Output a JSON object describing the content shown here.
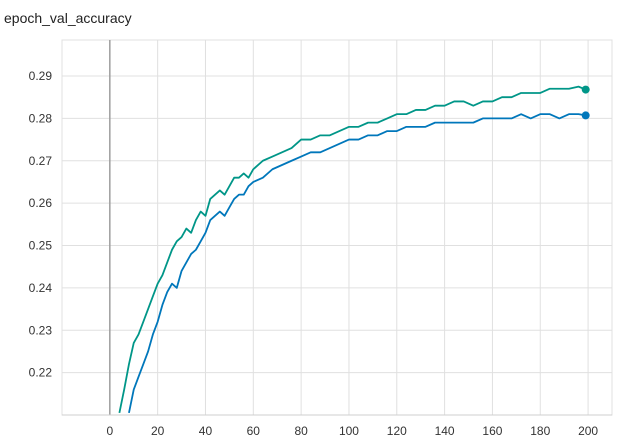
{
  "chart_data": {
    "type": "line",
    "title": "epoch_val_accuracy",
    "xlabel": "",
    "ylabel": "",
    "xlim": [
      -20,
      210
    ],
    "ylim": [
      0.21,
      0.2985
    ],
    "xticks": [
      0,
      20,
      40,
      60,
      80,
      100,
      120,
      140,
      160,
      180,
      200
    ],
    "yticks": [
      0.22,
      0.23,
      0.24,
      0.25,
      0.26,
      0.27,
      0.28,
      0.29
    ],
    "xtick_labels": [
      "0",
      "20",
      "40",
      "60",
      "80",
      "100",
      "120",
      "140",
      "160",
      "180",
      "200"
    ],
    "ytick_labels": [
      "0.22",
      "0.23",
      "0.24",
      "0.25",
      "0.26",
      "0.27",
      "0.28",
      "0.29"
    ],
    "grid": true,
    "series": [
      {
        "color": "#009688",
        "x": [
          4,
          6,
          8,
          10,
          12,
          14,
          16,
          18,
          20,
          22,
          24,
          26,
          28,
          30,
          32,
          34,
          36,
          38,
          40,
          42,
          44,
          46,
          48,
          50,
          52,
          54,
          56,
          58,
          60,
          64,
          68,
          72,
          76,
          80,
          84,
          88,
          92,
          96,
          100,
          104,
          108,
          112,
          116,
          120,
          124,
          128,
          132,
          136,
          140,
          144,
          148,
          152,
          156,
          160,
          164,
          168,
          172,
          176,
          180,
          184,
          188,
          192,
          196,
          199
        ],
        "values": [
          0.2105,
          0.216,
          0.222,
          0.227,
          0.229,
          0.232,
          0.235,
          0.238,
          0.241,
          0.243,
          0.246,
          0.249,
          0.251,
          0.252,
          0.254,
          0.253,
          0.256,
          0.258,
          0.257,
          0.261,
          0.262,
          0.263,
          0.262,
          0.264,
          0.266,
          0.266,
          0.267,
          0.266,
          0.268,
          0.27,
          0.271,
          0.272,
          0.273,
          0.275,
          0.275,
          0.276,
          0.276,
          0.277,
          0.278,
          0.278,
          0.279,
          0.279,
          0.28,
          0.281,
          0.281,
          0.282,
          0.282,
          0.283,
          0.283,
          0.284,
          0.284,
          0.283,
          0.284,
          0.284,
          0.285,
          0.285,
          0.286,
          0.286,
          0.286,
          0.287,
          0.287,
          0.287,
          0.2875,
          0.2868
        ]
      },
      {
        "color": "#0077bb",
        "x": [
          8,
          10,
          12,
          14,
          16,
          18,
          20,
          22,
          24,
          26,
          28,
          30,
          32,
          34,
          36,
          38,
          40,
          42,
          44,
          46,
          48,
          50,
          52,
          54,
          56,
          58,
          60,
          64,
          68,
          72,
          76,
          80,
          84,
          88,
          92,
          96,
          100,
          104,
          108,
          112,
          116,
          120,
          124,
          128,
          132,
          136,
          140,
          144,
          148,
          152,
          156,
          160,
          164,
          168,
          172,
          176,
          180,
          184,
          188,
          192,
          196,
          199
        ],
        "values": [
          0.2105,
          0.216,
          0.219,
          0.222,
          0.225,
          0.229,
          0.232,
          0.236,
          0.239,
          0.241,
          0.24,
          0.244,
          0.246,
          0.248,
          0.249,
          0.251,
          0.253,
          0.256,
          0.257,
          0.258,
          0.257,
          0.259,
          0.261,
          0.262,
          0.262,
          0.264,
          0.265,
          0.266,
          0.268,
          0.269,
          0.27,
          0.271,
          0.272,
          0.272,
          0.273,
          0.274,
          0.275,
          0.275,
          0.276,
          0.276,
          0.277,
          0.277,
          0.278,
          0.278,
          0.278,
          0.279,
          0.279,
          0.279,
          0.279,
          0.279,
          0.28,
          0.28,
          0.28,
          0.28,
          0.281,
          0.28,
          0.281,
          0.281,
          0.28,
          0.281,
          0.281,
          0.2807
        ]
      }
    ]
  }
}
